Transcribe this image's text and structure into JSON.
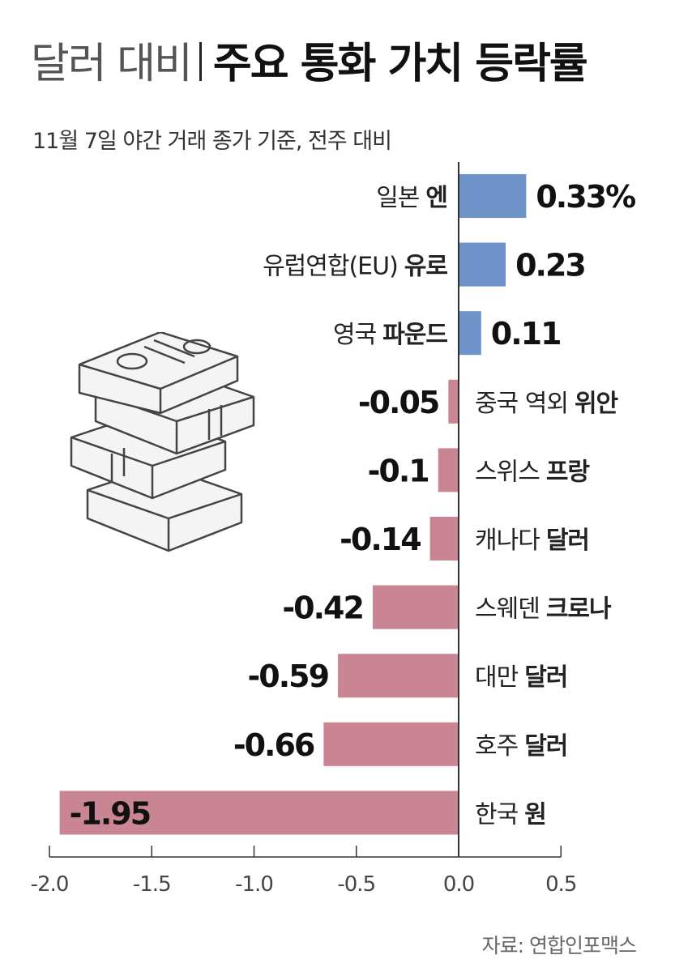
{
  "title": {
    "light": "달러 대비",
    "bold": "주요 통화 가치 등락률"
  },
  "subtitle": "11월 7일 야간 거래 종가 기준, 전주 대비",
  "source": "자료: 연합인포맥스",
  "colors": {
    "positive": "#6f93c9",
    "negative": "#c98593",
    "axis": "#333333"
  },
  "illustration": "stacked-money-bundles",
  "chart_data": {
    "type": "bar",
    "orientation": "horizontal",
    "categories": [
      {
        "prefix": "일본",
        "name": "엔"
      },
      {
        "prefix": "유럽연합(EU)",
        "name": "유로"
      },
      {
        "prefix": "영국",
        "name": "파운드"
      },
      {
        "prefix": "중국 역외",
        "name": "위안"
      },
      {
        "prefix": "스위스",
        "name": "프랑"
      },
      {
        "prefix": "캐나다",
        "name": "달러"
      },
      {
        "prefix": "스웨덴",
        "name": "크로나"
      },
      {
        "prefix": "대만",
        "name": "달러"
      },
      {
        "prefix": "호주",
        "name": "달러"
      },
      {
        "prefix": "한국",
        "name": "원"
      }
    ],
    "values": [
      0.33,
      0.23,
      0.11,
      -0.05,
      -0.1,
      -0.14,
      -0.42,
      -0.59,
      -0.66,
      -1.95
    ],
    "value_labels": [
      "0.33%",
      "0.23",
      "0.11",
      "-0.05",
      "-0.1",
      "-0.14",
      "-0.42",
      "-0.59",
      "-0.66",
      "-1.95"
    ],
    "xlim": [
      -2.0,
      0.5
    ],
    "ticks": [
      -2.0,
      -1.5,
      -1.0,
      -0.5,
      0.0,
      0.5
    ],
    "tick_labels": [
      "-2.0",
      "-1.5",
      "-1.0",
      "-0.5",
      "0.0",
      "0.5"
    ],
    "grid": false
  }
}
